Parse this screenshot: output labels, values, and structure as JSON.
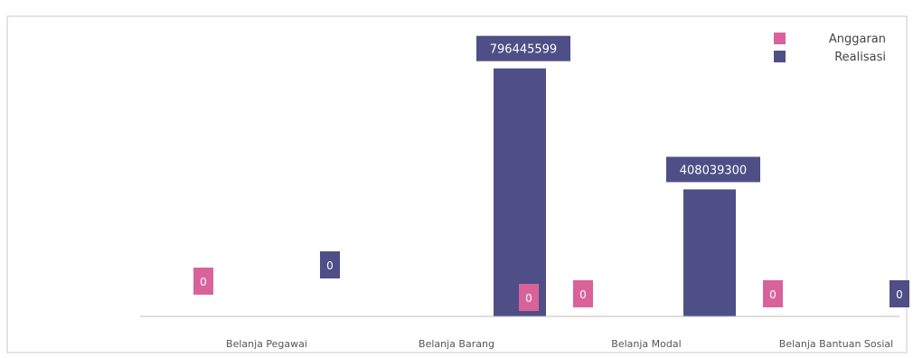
{
  "chart_data": {
    "type": "bar",
    "title": "",
    "xlabel": "",
    "ylabel": "",
    "categories": [
      "Belanja Pegawai",
      "Belanja Barang",
      "Belanja Modal",
      "Belanja Bantuan Sosial"
    ],
    "series": [
      {
        "name": "Anggaran",
        "values": [
          0,
          0,
          0,
          0
        ],
        "color": "#d9629b",
        "labels": [
          "0",
          "0",
          "0",
          "0"
        ]
      },
      {
        "name": "Realisasi",
        "values": [
          0,
          796445599,
          408039300,
          0
        ],
        "color": "#4d4f86",
        "labels": [
          "0",
          "796445599",
          "408039300",
          "0"
        ]
      }
    ],
    "ylim": [
      0,
      900000000
    ],
    "grid": false,
    "legend": "top-right"
  }
}
